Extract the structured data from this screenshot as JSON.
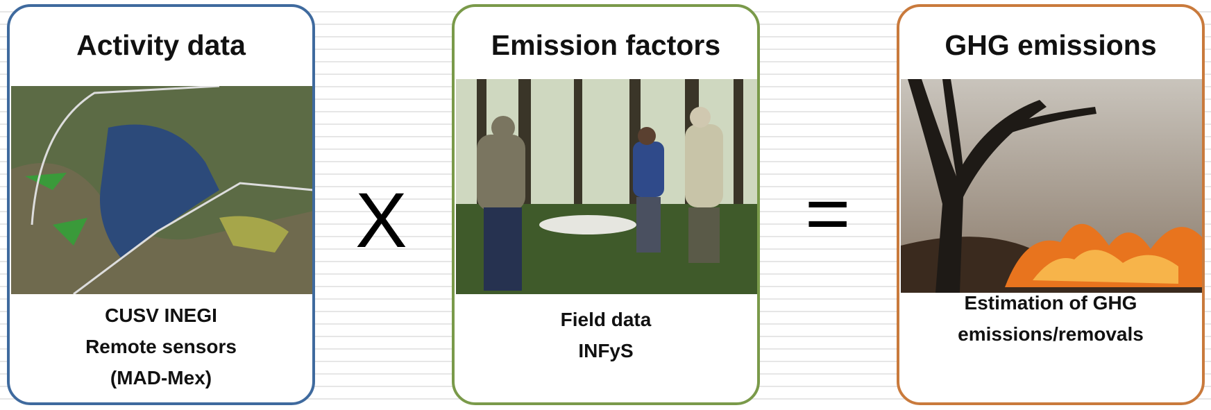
{
  "panels": [
    {
      "title": "Activity data",
      "caption": [
        "CUSV INEGI",
        "Remote sensors",
        "(MAD-Mex)"
      ]
    },
    {
      "title": "Emission factors",
      "caption": [
        "Field data",
        "INFyS"
      ]
    },
    {
      "title": "GHG emissions",
      "caption": [
        "Estimation of GHG",
        "emissions/removals"
      ]
    }
  ],
  "operators": [
    "X",
    "="
  ]
}
